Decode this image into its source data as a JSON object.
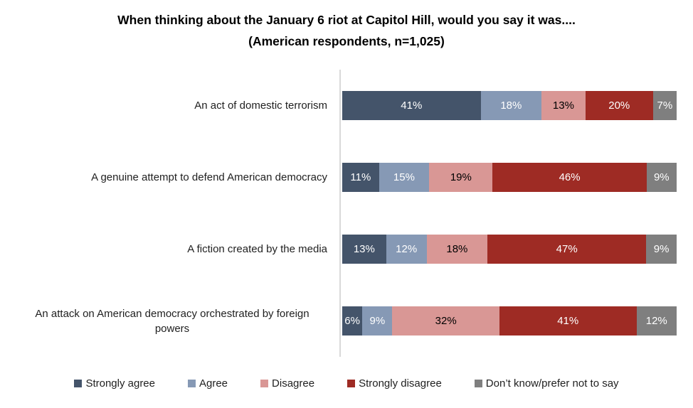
{
  "title": {
    "line1": "When thinking about the January 6 riot at Capitol Hill, would you say it was....",
    "line2": "(American respondents, n=1,025)"
  },
  "chart_data": {
    "type": "bar",
    "subtype": "horizontal-stacked-100",
    "title": "When thinking about the January 6 riot at Capitol Hill, would you say it was.... (American respondents, n=1,025)",
    "categories": [
      "An act of domestic terrorism",
      "A genuine attempt to defend American democracy",
      "A fiction created by the media",
      "An attack on American democracy orchestrated by foreign powers"
    ],
    "series": [
      {
        "name": "Strongly agree",
        "color": "#44546A",
        "label_color": "#FFFFFF",
        "values": [
          41,
          11,
          13,
          6
        ]
      },
      {
        "name": "Agree",
        "color": "#8699B5",
        "label_color": "#FFFFFF",
        "values": [
          18,
          15,
          12,
          9
        ]
      },
      {
        "name": "Disagree",
        "color": "#D99795",
        "label_color": "#000000",
        "values": [
          13,
          19,
          18,
          32
        ]
      },
      {
        "name": "Strongly disagree",
        "color": "#9E2B24",
        "label_color": "#FFFFFF",
        "values": [
          20,
          46,
          47,
          41
        ]
      },
      {
        "name": "Don’t know/prefer not to say",
        "color": "#7F7F7F",
        "label_color": "#FFFFFF",
        "values": [
          7,
          9,
          9,
          12
        ]
      }
    ],
    "value_suffix": "%",
    "xlim": [
      0,
      100
    ],
    "legend_position": "bottom",
    "grid": false,
    "axis_color": "#D9D9D9",
    "background": "#FFFFFF"
  }
}
